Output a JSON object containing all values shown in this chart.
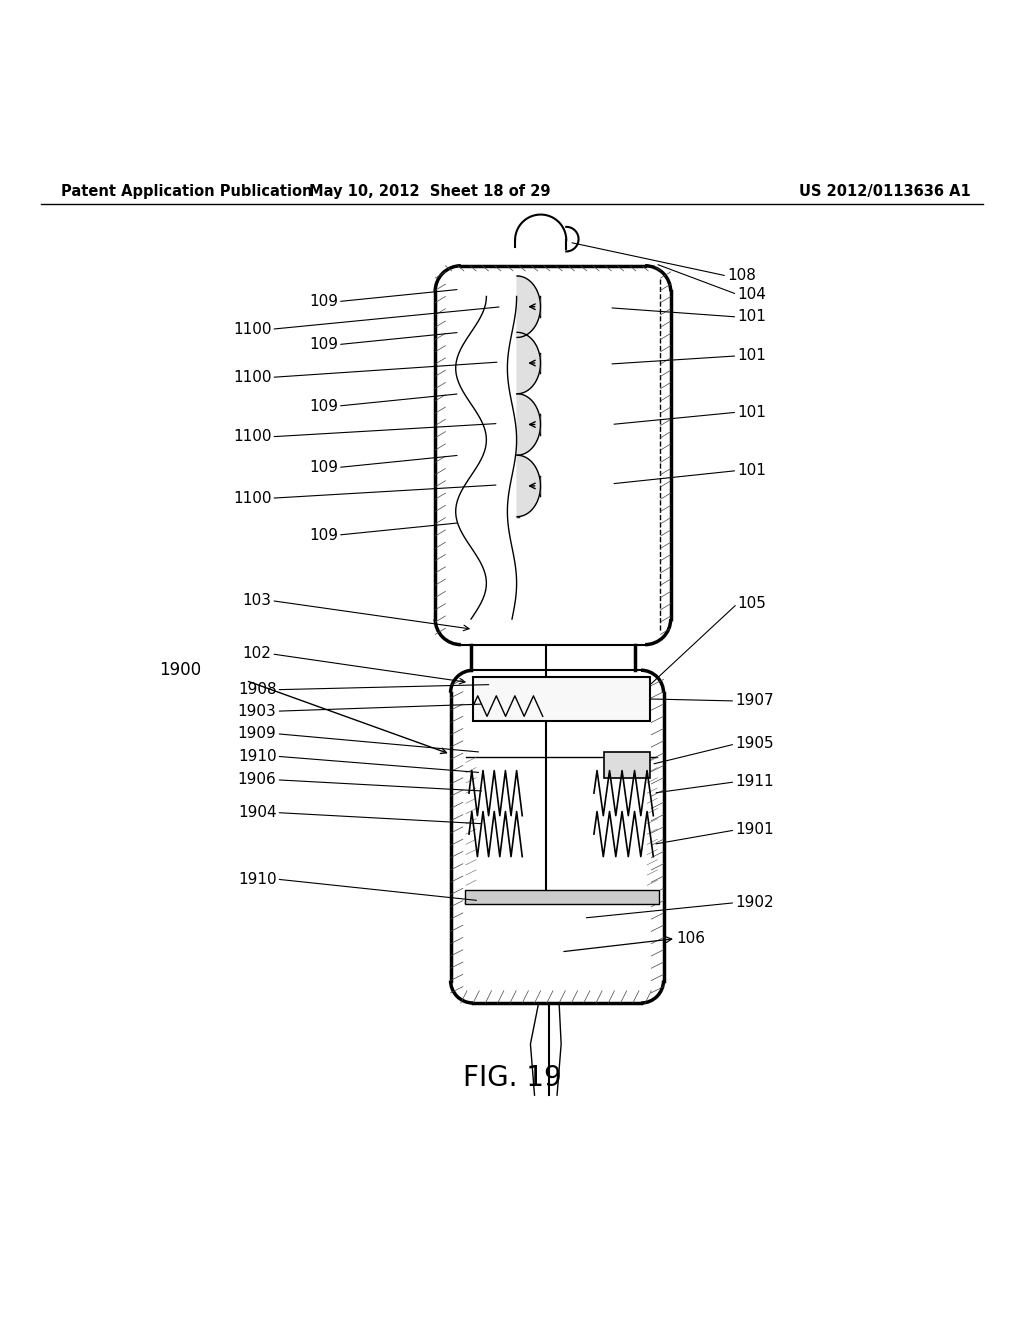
{
  "header_left": "Patent Application Publication",
  "header_center": "May 10, 2012  Sheet 18 of 29",
  "header_right": "US 2012/0113636 A1",
  "fig_label": "FIG. 19",
  "bg_color": "#ffffff",
  "line_color": "#000000",
  "label_fontsize": 11,
  "header_fontsize": 10.5,
  "fig_label_fontsize": 20
}
